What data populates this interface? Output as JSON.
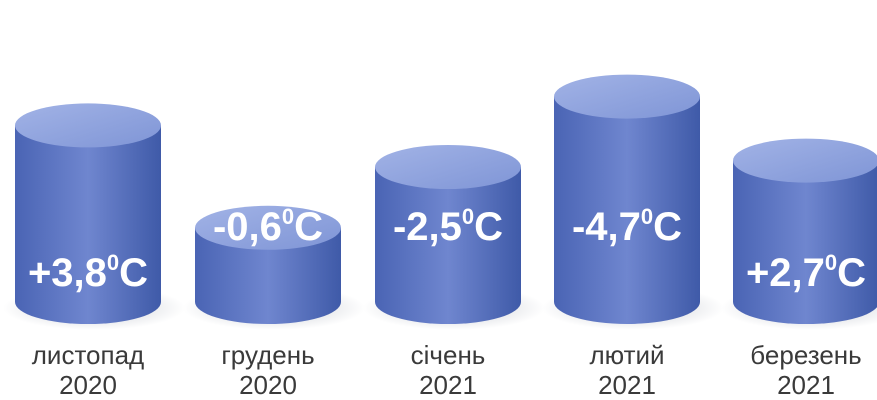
{
  "chart_data": {
    "type": "bar",
    "style": "3d-cylinder",
    "categories": [
      {
        "month": "листопад",
        "year": "2020"
      },
      {
        "month": "грудень",
        "year": "2020"
      },
      {
        "month": "січень",
        "year": "2021"
      },
      {
        "month": "лютий",
        "year": "2021"
      },
      {
        "month": "березень",
        "year": "2021"
      }
    ],
    "values": [
      3.8,
      -0.6,
      -2.5,
      -4.7,
      2.7
    ],
    "data_labels": [
      "+3,8",
      "-0,6",
      "-2,5",
      "-4,7",
      "+2,7"
    ],
    "unit_degree": "0",
    "unit_letter": "C",
    "title": "",
    "xlabel": "",
    "ylabel": "",
    "grid": false,
    "legend": "none",
    "colors": {
      "cylinder_top": "#8a9fdb",
      "cylinder_body_light": "#6f86cf",
      "cylinder_body_dark": "#3f5aa8",
      "label_text": "#3a3a3a"
    }
  }
}
